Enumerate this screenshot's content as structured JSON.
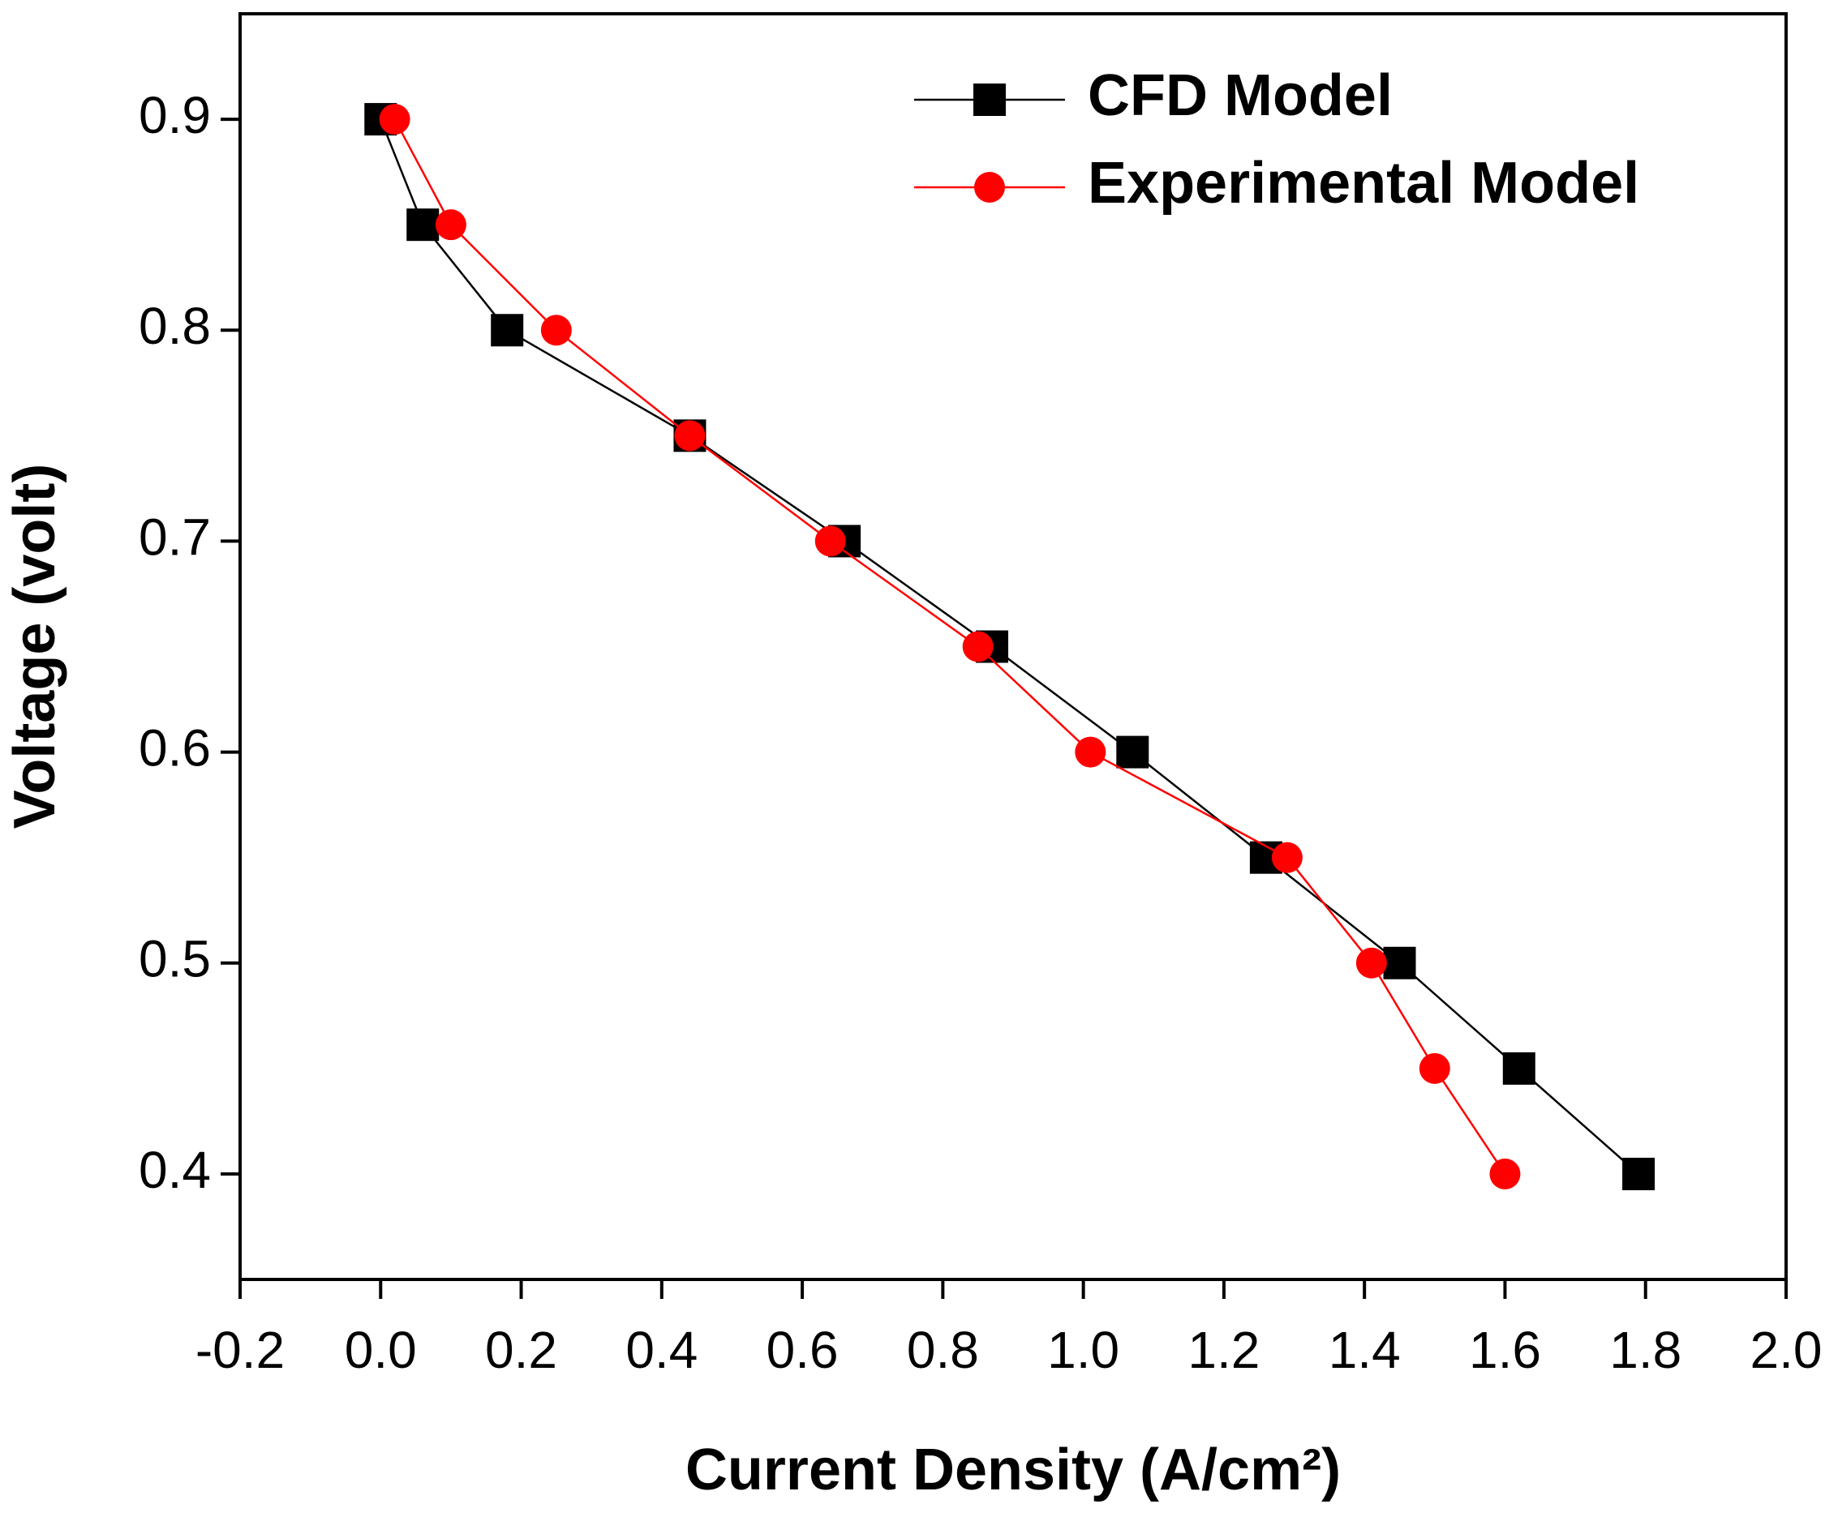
{
  "chart_data": {
    "type": "line",
    "xlabel": "Current Density (A/cm²)",
    "ylabel": "Voltage (volt)",
    "xlim": [
      -0.2,
      2.0
    ],
    "ylim": [
      0.35,
      0.95
    ],
    "xticks": [
      -0.2,
      {
        "value": 0,
        "label": "0.0"
      },
      0.2,
      0.4,
      0.6,
      0.8,
      {
        "value": 1,
        "label": "1.0"
      },
      1.2,
      1.4,
      1.6,
      1.8,
      {
        "value": 2,
        "label": "2.0"
      }
    ],
    "yticks": [
      0.4,
      0.5,
      0.6,
      0.7,
      0.8,
      0.9
    ],
    "legend": "top-right",
    "series": [
      {
        "name": "CFD Model",
        "color": "#000000",
        "marker": "square",
        "x": [
          0.0,
          0.06,
          0.18,
          0.44,
          0.66,
          0.87,
          1.07,
          1.26,
          1.45,
          1.62,
          1.79
        ],
        "values": [
          0.9,
          0.85,
          0.8,
          0.75,
          0.7,
          0.65,
          0.6,
          0.55,
          0.5,
          0.45,
          0.4
        ]
      },
      {
        "name": "Experimental Model",
        "color": "#ff0000",
        "marker": "circle",
        "x": [
          0.02,
          0.1,
          0.25,
          0.44,
          0.64,
          0.85,
          1.01,
          1.29,
          1.41,
          1.5,
          1.6
        ],
        "values": [
          0.9,
          0.85,
          0.8,
          0.75,
          0.7,
          0.65,
          0.6,
          0.55,
          0.5,
          0.45,
          0.4
        ]
      }
    ]
  }
}
